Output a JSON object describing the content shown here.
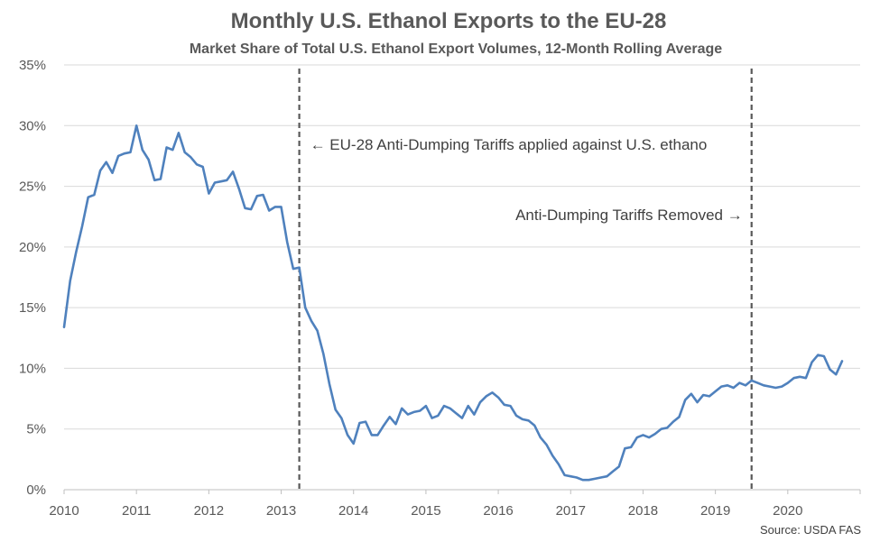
{
  "chart_data": {
    "type": "line",
    "title": "Monthly U.S. Ethanol Exports to the EU-28",
    "subtitle": "Market Share of Total U.S. Ethanol Export Volumes, 12-Month Rolling Average",
    "source": "Source: USDA FAS",
    "xlim": [
      2010,
      2021
    ],
    "ylim": [
      0,
      35
    ],
    "x_ticks": [
      2010,
      2011,
      2012,
      2013,
      2014,
      2015,
      2016,
      2017,
      2018,
      2019,
      2020
    ],
    "x_tick_labels": [
      "2010",
      "2011",
      "2012",
      "2013",
      "2014",
      "2015",
      "2016",
      "2017",
      "2018",
      "2019",
      "2020"
    ],
    "y_ticks": [
      0,
      5,
      10,
      15,
      20,
      25,
      30,
      35
    ],
    "y_tick_labels": [
      "0%",
      "5%",
      "10%",
      "15%",
      "20%",
      "25%",
      "30%",
      "35%"
    ],
    "grid": true,
    "series_color": "#4F81BD",
    "series": [
      {
        "x": [
          2010.0,
          2010.083,
          2010.167,
          2010.25,
          2010.333,
          2010.417,
          2010.5,
          2010.583,
          2010.667,
          2010.75,
          2010.833,
          2010.917,
          2011.0,
          2011.083,
          2011.167,
          2011.25,
          2011.333,
          2011.417,
          2011.5,
          2011.583,
          2011.667,
          2011.75,
          2011.833,
          2011.917,
          2012.0,
          2012.083,
          2012.167,
          2012.25,
          2012.333,
          2012.417,
          2012.5,
          2012.583,
          2012.667,
          2012.75,
          2012.833,
          2012.917,
          2013.0,
          2013.083,
          2013.167,
          2013.25,
          2013.333,
          2013.417,
          2013.5,
          2013.583,
          2013.667,
          2013.75,
          2013.833,
          2013.917,
          2014.0,
          2014.083,
          2014.167,
          2014.25,
          2014.333,
          2014.417,
          2014.5,
          2014.583,
          2014.667,
          2014.75,
          2014.833,
          2014.917,
          2015.0,
          2015.083,
          2015.167,
          2015.25,
          2015.333,
          2015.417,
          2015.5,
          2015.583,
          2015.667,
          2015.75,
          2015.833,
          2015.917,
          2016.0,
          2016.083,
          2016.167,
          2016.25,
          2016.333,
          2016.417,
          2016.5,
          2016.583,
          2016.667,
          2016.75,
          2016.833,
          2016.917,
          2017.0,
          2017.083,
          2017.167,
          2017.25,
          2017.333,
          2017.417,
          2017.5,
          2017.583,
          2017.667,
          2017.75,
          2017.833,
          2017.917,
          2018.0,
          2018.083,
          2018.167,
          2018.25,
          2018.333,
          2018.417,
          2018.5,
          2018.583,
          2018.667,
          2018.75,
          2018.833,
          2018.917,
          2019.0,
          2019.083,
          2019.167,
          2019.25,
          2019.333,
          2019.417,
          2019.5,
          2019.583,
          2019.667,
          2019.75,
          2019.833,
          2019.917,
          2020.0,
          2020.083,
          2020.167,
          2020.25,
          2020.333,
          2020.417,
          2020.5,
          2020.583,
          2020.667,
          2020.75
        ],
        "values": [
          13.4,
          17.2,
          19.6,
          21.7,
          24.1,
          24.3,
          26.3,
          27.0,
          26.1,
          27.5,
          27.7,
          27.8,
          30.0,
          28.0,
          27.2,
          25.5,
          25.6,
          28.2,
          28.0,
          29.4,
          27.8,
          27.4,
          26.8,
          26.6,
          24.4,
          25.3,
          25.4,
          25.5,
          26.2,
          24.8,
          23.2,
          23.1,
          24.2,
          24.3,
          23.0,
          23.3,
          23.3,
          20.4,
          18.2,
          18.3,
          15.0,
          13.9,
          13.1,
          11.2,
          8.7,
          6.6,
          5.9,
          4.5,
          3.8,
          5.5,
          5.6,
          4.5,
          4.5,
          5.3,
          6.0,
          5.4,
          6.7,
          6.2,
          6.4,
          6.5,
          6.9,
          5.9,
          6.1,
          6.9,
          6.7,
          6.3,
          5.9,
          6.9,
          6.2,
          7.2,
          7.7,
          8.0,
          7.6,
          7.0,
          6.9,
          6.1,
          5.8,
          5.7,
          5.3,
          4.3,
          3.7,
          2.8,
          2.1,
          1.2,
          1.1,
          1.0,
          0.8,
          0.8,
          0.9,
          1.0,
          1.1,
          1.5,
          1.9,
          3.4,
          3.5,
          4.3,
          4.5,
          4.3,
          4.6,
          5.0,
          5.1,
          5.6,
          6.0,
          7.4,
          7.9,
          7.2,
          7.8,
          7.7,
          8.1,
          8.5,
          8.6,
          8.4,
          8.8,
          8.6,
          9.0,
          8.8,
          8.6,
          8.5,
          8.4,
          8.5,
          8.8,
          9.2,
          9.3,
          9.2,
          10.5,
          11.1,
          11.0,
          9.9,
          9.5,
          10.6
        ]
      }
    ],
    "markers": [
      {
        "x": 2013.25,
        "label": "← EU-28 Anti-Dumping Tariffs applied against U.S. ethano",
        "label_side": "right"
      },
      {
        "x": 2019.5,
        "label": "Anti-Dumping Tariffs Removed →",
        "label_side": "left"
      }
    ]
  }
}
